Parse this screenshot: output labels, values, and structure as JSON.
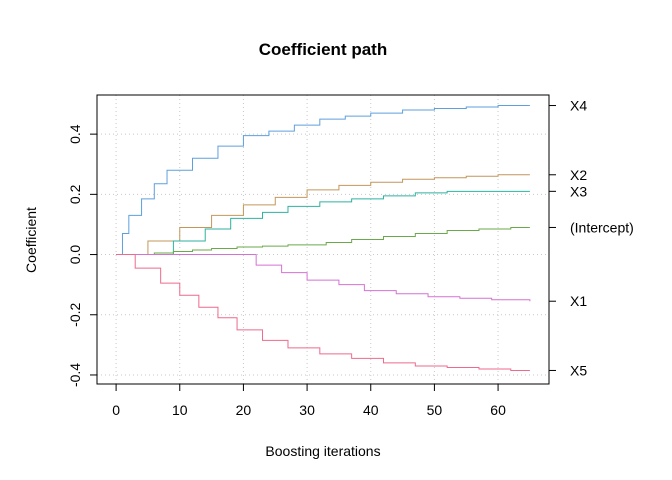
{
  "chart_data": {
    "type": "line",
    "line_style": "step",
    "title": "Coefficient path",
    "xlabel": "Boosting iterations",
    "ylabel": "Coefficient",
    "xlim": [
      -3,
      68
    ],
    "ylim": [
      -0.43,
      0.53
    ],
    "xticks": [
      0,
      10,
      20,
      30,
      40,
      50,
      60
    ],
    "yticks": [
      -0.4,
      -0.2,
      0.0,
      0.2,
      0.4
    ],
    "ytick_labels": [
      "-0.4",
      "-0.2",
      "0.0",
      "0.2",
      "0.4"
    ],
    "grid": true,
    "legend": "right-margin labels",
    "series": [
      {
        "name": "X4",
        "color": "#5da0dc",
        "points": [
          [
            0,
            0
          ],
          [
            1,
            0.07
          ],
          [
            2,
            0.13
          ],
          [
            4,
            0.185
          ],
          [
            6,
            0.235
          ],
          [
            8,
            0.28
          ],
          [
            12,
            0.32
          ],
          [
            16,
            0.36
          ],
          [
            20,
            0.395
          ],
          [
            24,
            0.41
          ],
          [
            28,
            0.43
          ],
          [
            32,
            0.45
          ],
          [
            36,
            0.46
          ],
          [
            40,
            0.47
          ],
          [
            45,
            0.48
          ],
          [
            50,
            0.485
          ],
          [
            55,
            0.49
          ],
          [
            60,
            0.495
          ],
          [
            65,
            0.495
          ]
        ]
      },
      {
        "name": "X2",
        "color": "#c4965a",
        "points": [
          [
            0,
            0
          ],
          [
            5,
            0.045
          ],
          [
            10,
            0.09
          ],
          [
            15,
            0.13
          ],
          [
            20,
            0.165
          ],
          [
            25,
            0.19
          ],
          [
            30,
            0.215
          ],
          [
            35,
            0.23
          ],
          [
            40,
            0.24
          ],
          [
            45,
            0.25
          ],
          [
            50,
            0.255
          ],
          [
            55,
            0.26
          ],
          [
            60,
            0.265
          ],
          [
            65,
            0.265
          ]
        ]
      },
      {
        "name": "X3",
        "color": "#2db2a0",
        "points": [
          [
            0,
            0
          ],
          [
            9,
            0.045
          ],
          [
            14,
            0.085
          ],
          [
            18,
            0.12
          ],
          [
            23,
            0.14
          ],
          [
            27,
            0.16
          ],
          [
            32,
            0.175
          ],
          [
            37,
            0.185
          ],
          [
            42,
            0.195
          ],
          [
            47,
            0.205
          ],
          [
            52,
            0.21
          ],
          [
            57,
            0.21
          ],
          [
            65,
            0.21
          ]
        ]
      },
      {
        "name": "(Intercept)",
        "color": "#6aaa4a",
        "points": [
          [
            0,
            0
          ],
          [
            6,
            0.005
          ],
          [
            9,
            0.01
          ],
          [
            12,
            0.015
          ],
          [
            15,
            0.02
          ],
          [
            19,
            0.025
          ],
          [
            23,
            0.028
          ],
          [
            27,
            0.032
          ],
          [
            33,
            0.04
          ],
          [
            37,
            0.05
          ],
          [
            42,
            0.06
          ],
          [
            47,
            0.07
          ],
          [
            52,
            0.08
          ],
          [
            57,
            0.085
          ],
          [
            62,
            0.09
          ],
          [
            65,
            0.09
          ]
        ]
      },
      {
        "name": "X1",
        "color": "#d472d4",
        "points": [
          [
            0,
            0
          ],
          [
            22,
            -0.035
          ],
          [
            26,
            -0.06
          ],
          [
            30,
            -0.085
          ],
          [
            35,
            -0.1
          ],
          [
            39,
            -0.12
          ],
          [
            44,
            -0.13
          ],
          [
            49,
            -0.14
          ],
          [
            54,
            -0.145
          ],
          [
            59,
            -0.15
          ],
          [
            65,
            -0.155
          ]
        ]
      },
      {
        "name": "X5",
        "color": "#ee6a8c",
        "points": [
          [
            0,
            0
          ],
          [
            3,
            -0.045
          ],
          [
            7,
            -0.095
          ],
          [
            10,
            -0.135
          ],
          [
            13,
            -0.175
          ],
          [
            16,
            -0.21
          ],
          [
            19,
            -0.25
          ],
          [
            23,
            -0.285
          ],
          [
            27,
            -0.31
          ],
          [
            32,
            -0.33
          ],
          [
            37,
            -0.345
          ],
          [
            42,
            -0.36
          ],
          [
            47,
            -0.37
          ],
          [
            52,
            -0.375
          ],
          [
            57,
            -0.38
          ],
          [
            62,
            -0.385
          ],
          [
            65,
            -0.385
          ]
        ]
      }
    ]
  }
}
